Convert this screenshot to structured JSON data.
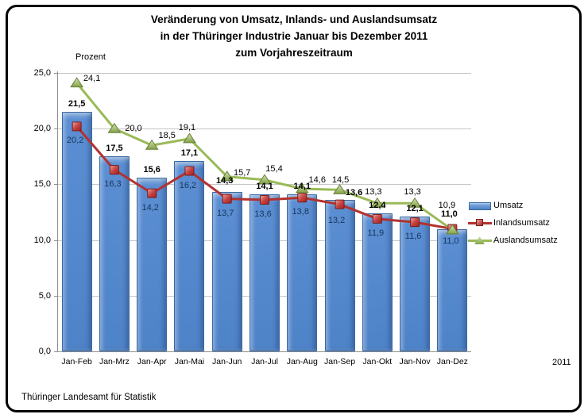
{
  "title": {
    "line1": "Veränderung  von Umsatz, Inlands- und Auslandsumsatz",
    "line2": "in der Thüringer Industrie Januar bis  Dezember 2011",
    "line3": "zum Vorjahreszeitraum"
  },
  "axis": {
    "y_unit_label": "Prozent",
    "x_year_label": "2011"
  },
  "footer": "Thüringer Landesamt für Statistik",
  "chart_data": {
    "type": "bar",
    "subtype": "bar-with-two-line-series",
    "title": "Veränderung von Umsatz, Inlands- und Auslandsumsatz in der Thüringer Industrie Januar bis Dezember 2011 zum Vorjahreszeitraum",
    "ylabel": "Prozent",
    "xlabel": "2011",
    "ylim": [
      0,
      25
    ],
    "ytick_step": 5,
    "ytick_labels": [
      "0,0",
      "5,0",
      "10,0",
      "15,0",
      "20,0",
      "25,0"
    ],
    "grid": true,
    "legend_position": "right",
    "categories": [
      "Jan-Feb",
      "Jan-Mrz",
      "Jan-Apr",
      "Jan-Mai",
      "Jan-Jun",
      "Jan-Jul",
      "Jan-Aug",
      "Jan-Sep",
      "Jan-Okt",
      "Jan-Nov",
      "Jan-Dez"
    ],
    "series": [
      {
        "name": "Umsatz",
        "kind": "bar",
        "color": "#5A8DD0",
        "values": [
          21.5,
          17.5,
          15.6,
          17.1,
          14.3,
          14.1,
          14.1,
          13.6,
          12.4,
          12.1,
          11.0
        ],
        "labels": [
          "21,5",
          "17,5",
          "15,6",
          "17,1",
          "14,3",
          "14,1",
          "14,1",
          "13,6",
          "12,4",
          "12,1",
          "11,0"
        ]
      },
      {
        "name": "Inlandsumsatz",
        "kind": "line",
        "marker": "square",
        "color": "#B23230",
        "label_color": "#17365D",
        "values": [
          20.2,
          16.3,
          14.2,
          16.2,
          13.7,
          13.6,
          13.8,
          13.2,
          11.9,
          11.6,
          11.0
        ],
        "labels": [
          "20,2",
          "16,3",
          "14,2",
          "16,2",
          "13,7",
          "13,6",
          "13,8",
          "13,2",
          "11,9",
          "11,6",
          "11,0"
        ]
      },
      {
        "name": "Auslandsumsatz",
        "kind": "line",
        "marker": "triangle",
        "color": "#9ABA58",
        "values": [
          24.1,
          20.0,
          18.5,
          19.1,
          15.7,
          15.4,
          14.6,
          14.5,
          13.3,
          13.3,
          10.9
        ],
        "labels": [
          "24,1",
          "20,0",
          "18,5",
          "19,1",
          "15,7",
          "15,4",
          "14,6",
          "14,5",
          "13,3",
          "13,3",
          "10,9"
        ]
      }
    ]
  }
}
